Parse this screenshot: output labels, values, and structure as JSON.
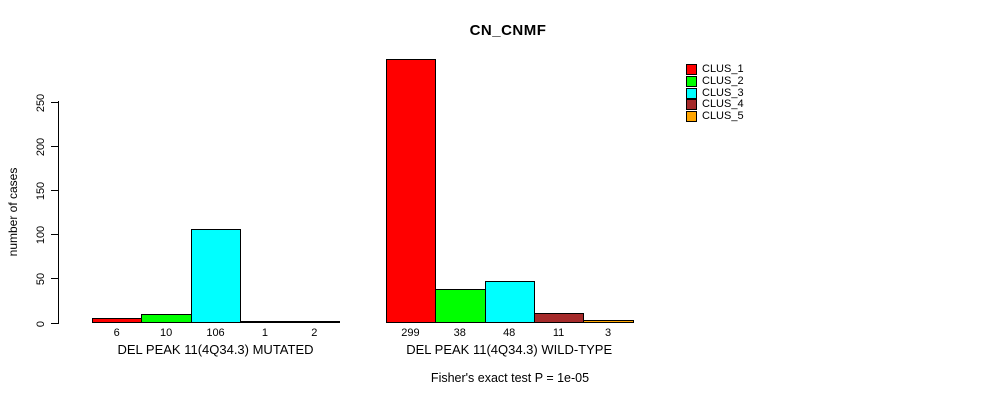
{
  "chart_data": {
    "type": "bar",
    "title": "CN_CNMF",
    "xlabel": "",
    "ylabel": "number of cases",
    "ylim": [
      0,
      250
    ],
    "yticks": [
      0,
      50,
      100,
      150,
      200,
      250
    ],
    "grid": false,
    "legend_position": "right",
    "background_color": "#ffffff",
    "bar_border_color": "#000000",
    "clusters": [
      {
        "name": "CLUS_1",
        "color": "#ff0000"
      },
      {
        "name": "CLUS_2",
        "color": "#00ff00"
      },
      {
        "name": "CLUS_3",
        "color": "#00ffff"
      },
      {
        "name": "CLUS_4",
        "color": "#a52a2a"
      },
      {
        "name": "CLUS_5",
        "color": "#ffa500"
      }
    ],
    "groups": [
      {
        "label": "DEL PEAK 11(4Q34.3) MUTATED",
        "values": [
          6,
          10,
          106,
          1,
          2
        ],
        "bar_labels": [
          "6",
          "10",
          "106",
          "1",
          "2"
        ]
      },
      {
        "label": "DEL PEAK 11(4Q34.3) WILD-TYPE",
        "values": [
          299,
          38,
          48,
          11,
          3
        ],
        "bar_labels": [
          "299",
          "38",
          "48",
          "11",
          "3"
        ]
      }
    ],
    "annotation": "Fisher's exact test P = 1e-05"
  }
}
